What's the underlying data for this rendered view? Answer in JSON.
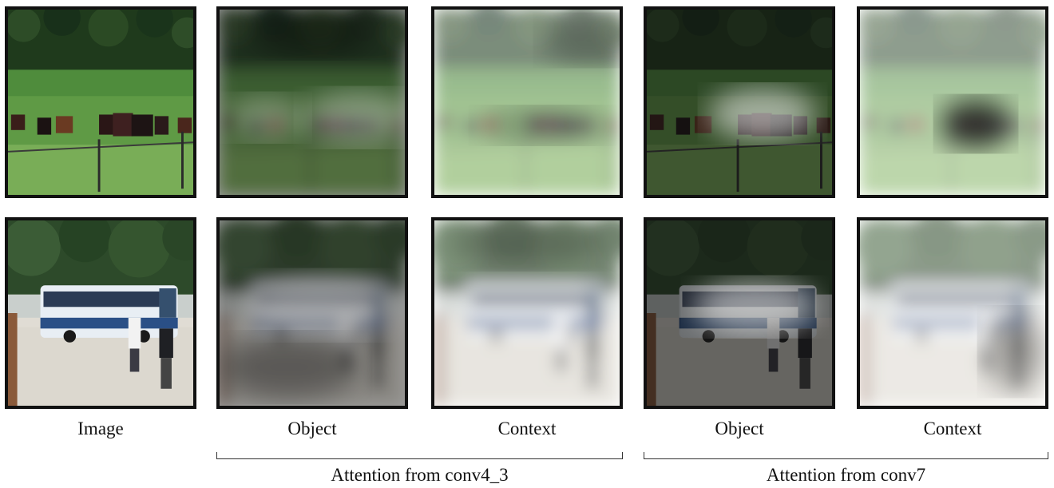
{
  "captions": {
    "c1": "Image",
    "c2": "Object",
    "c3": "Context",
    "c4": "Object",
    "c5": "Context"
  },
  "groups": {
    "g1": "Attention from conv4_3",
    "g2": "Attention from conv7"
  },
  "colors": {
    "border": "#111111",
    "forest": "#1f3a1c",
    "grass": "#5f9a45",
    "bus_body": "#e8eef4",
    "bus_stripe": "#2a4f86",
    "ground": "#dcd8cf"
  }
}
